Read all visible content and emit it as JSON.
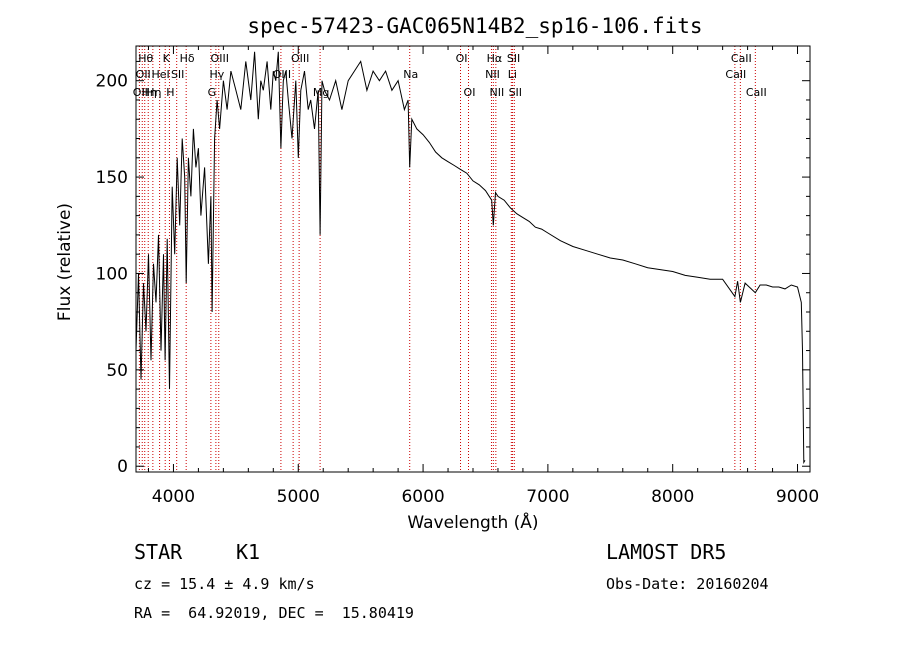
{
  "chart_data": {
    "type": "line",
    "title": "spec-57423-GAC065N14B2_sp16-106.fits",
    "xlabel": "Wavelength (Å)",
    "ylabel": "Flux (relative)",
    "xlim": [
      3700,
      9100
    ],
    "ylim": [
      -3,
      218
    ],
    "x_ticks": [
      4000,
      5000,
      6000,
      7000,
      8000,
      9000
    ],
    "y_ticks": [
      0,
      50,
      100,
      150,
      200
    ],
    "grid": false,
    "series": [
      {
        "color": "#000000",
        "x": [
          3700,
          3720,
          3740,
          3760,
          3780,
          3800,
          3820,
          3840,
          3860,
          3880,
          3900,
          3920,
          3933,
          3950,
          3968,
          3990,
          4010,
          4030,
          4050,
          4070,
          4090,
          4102,
          4120,
          4140,
          4160,
          4180,
          4200,
          4220,
          4250,
          4280,
          4300,
          4310,
          4330,
          4350,
          4370,
          4400,
          4430,
          4460,
          4500,
          4540,
          4580,
          4620,
          4650,
          4680,
          4700,
          4720,
          4750,
          4780,
          4800,
          4820,
          4840,
          4861,
          4880,
          4900,
          4920,
          4950,
          4980,
          5000,
          5020,
          5050,
          5080,
          5100,
          5130,
          5160,
          5175,
          5190,
          5210,
          5250,
          5300,
          5350,
          5400,
          5450,
          5500,
          5550,
          5600,
          5650,
          5700,
          5750,
          5800,
          5850,
          5880,
          5893,
          5910,
          5950,
          6000,
          6050,
          6100,
          6150,
          6200,
          6250,
          6300,
          6350,
          6400,
          6450,
          6500,
          6550,
          6563,
          6580,
          6600,
          6650,
          6700,
          6750,
          6800,
          6850,
          6900,
          6950,
          7000,
          7100,
          7200,
          7300,
          7400,
          7500,
          7600,
          7700,
          7800,
          7900,
          8000,
          8100,
          8200,
          8300,
          8400,
          8498,
          8520,
          8542,
          8580,
          8662,
          8700,
          8750,
          8800,
          8850,
          8900,
          8950,
          9000,
          9030,
          9040,
          9050,
          9060
        ],
        "y": [
          60,
          100,
          45,
          95,
          70,
          110,
          55,
          105,
          85,
          120,
          60,
          110,
          55,
          118,
          40,
          145,
          110,
          160,
          125,
          170,
          150,
          95,
          160,
          140,
          175,
          155,
          165,
          130,
          155,
          105,
          140,
          80,
          170,
          190,
          175,
          200,
          185,
          205,
          195,
          185,
          210,
          190,
          215,
          180,
          200,
          195,
          210,
          185,
          205,
          200,
          215,
          165,
          200,
          205,
          190,
          170,
          200,
          160,
          195,
          205,
          185,
          190,
          175,
          195,
          120,
          200,
          195,
          190,
          200,
          185,
          200,
          205,
          210,
          195,
          205,
          200,
          205,
          195,
          200,
          185,
          190,
          155,
          180,
          175,
          172,
          168,
          163,
          160,
          158,
          156,
          154,
          152,
          148,
          146,
          143,
          138,
          125,
          142,
          140,
          138,
          134,
          131,
          129,
          127,
          124,
          123,
          121,
          117,
          114,
          112,
          110,
          108,
          107,
          105,
          103,
          102,
          101,
          99,
          98,
          97,
          97,
          88,
          96,
          85,
          95,
          90,
          94,
          94,
          93,
          93,
          92,
          94,
          93,
          85,
          60,
          2,
          3
        ]
      }
    ],
    "line_markers": [
      {
        "x": 3727,
        "label": "OII",
        "row": 3
      },
      {
        "x": 3750,
        "label": "OII",
        "row": 2
      },
      {
        "x": 3770,
        "label": "Hθ",
        "row": 1
      },
      {
        "x": 3798,
        "label": "Hη",
        "row": 3
      },
      {
        "x": 3835,
        "label": "Hη",
        "row": 3
      },
      {
        "x": 3889,
        "label": "HeI",
        "row": 2
      },
      {
        "x": 3934,
        "label": "K",
        "row": 1
      },
      {
        "x": 3968,
        "label": "H",
        "row": 3
      },
      {
        "x": 4026,
        "label": "SII",
        "row": 2
      },
      {
        "x": 4102,
        "label": "Hδ",
        "row": 1
      },
      {
        "x": 4300,
        "label": "G",
        "row": 3
      },
      {
        "x": 4340,
        "label": "Hγ",
        "row": 2
      },
      {
        "x": 4363,
        "label": "OIII",
        "row": 1
      },
      {
        "x": 4861,
        "label": "OIII",
        "row": 2
      },
      {
        "x": 4959,
        "label": "",
        "row": 0
      },
      {
        "x": 5007,
        "label": "OIII",
        "row": 1
      },
      {
        "x": 5175,
        "label": "Mg",
        "row": 3
      },
      {
        "x": 5893,
        "label": "Na",
        "row": 2
      },
      {
        "x": 6300,
        "label": "OI",
        "row": 1
      },
      {
        "x": 6364,
        "label": "OI",
        "row": 3
      },
      {
        "x": 6548,
        "label": "NII",
        "row": 2
      },
      {
        "x": 6563,
        "label": "Hα",
        "row": 1
      },
      {
        "x": 6583,
        "label": "NII",
        "row": 3
      },
      {
        "x": 6707,
        "label": "Li",
        "row": 2
      },
      {
        "x": 6717,
        "label": "SII",
        "row": 1
      },
      {
        "x": 6731,
        "label": "SII",
        "row": 3
      },
      {
        "x": 8498,
        "label": "CaII",
        "row": 2
      },
      {
        "x": 8542,
        "label": "CaII",
        "row": 1
      },
      {
        "x": 8662,
        "label": "CaII",
        "row": 3
      }
    ],
    "marker_color": "#cc0000"
  },
  "info": {
    "class": "STAR",
    "subclass": "K1",
    "survey": "LAMOST DR5",
    "cz": "cz = 15.4 ± 4.9 km/s",
    "obs_date": "Obs-Date: 20160204",
    "coords": "RA =  64.92019, DEC =  15.80419"
  }
}
